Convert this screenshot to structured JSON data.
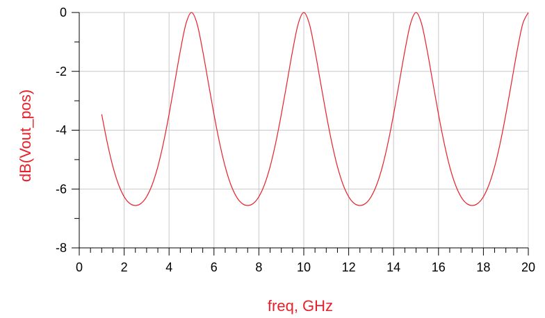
{
  "chart_data": {
    "type": "line",
    "xlabel": "freq, GHz",
    "ylabel": "dB(Vout_pos)",
    "xlim": [
      0,
      20
    ],
    "ylim": [
      -8,
      0
    ],
    "x_ticks": [
      0,
      2,
      4,
      6,
      8,
      10,
      12,
      14,
      16,
      18,
      20
    ],
    "y_ticks": [
      -8,
      -6,
      -4,
      -2,
      0
    ],
    "grid": true,
    "colors": {
      "series": "#e8202a",
      "ylabel": "#e8202a",
      "xlabel": "#e8202a",
      "grid": "#c8c8c8",
      "axis": "#000000"
    },
    "series": [
      {
        "x": [
          1.0,
          1.25,
          1.5,
          1.75,
          2.0,
          2.25,
          2.5,
          2.75,
          3.0,
          3.25,
          3.5,
          3.75,
          4.0,
          4.25,
          4.5,
          4.75,
          5.0,
          5.25,
          5.5,
          5.75,
          6.0,
          6.25,
          6.5,
          6.75,
          7.0,
          7.25,
          7.5,
          7.75,
          8.0,
          8.25,
          8.5,
          8.75,
          9.0,
          9.25,
          9.5,
          9.75,
          10.0,
          10.25,
          10.5,
          10.75,
          11.0,
          11.25,
          11.5,
          11.75,
          12.0,
          12.25,
          12.5,
          12.75,
          13.0,
          13.25,
          13.5,
          13.75,
          14.0,
          14.25,
          14.5,
          14.75,
          15.0,
          15.25,
          15.5,
          15.75,
          16.0,
          16.25,
          16.5,
          16.75,
          17.0,
          17.25,
          17.5,
          17.75,
          18.0,
          18.25,
          18.5,
          18.75,
          19.0,
          19.25,
          19.5,
          19.75,
          20.0
        ],
        "values": [
          -3.46,
          -4.43,
          -5.24,
          -5.85,
          -6.26,
          -6.49,
          -6.56,
          -6.49,
          -6.26,
          -5.85,
          -5.24,
          -4.43,
          -3.46,
          -2.39,
          -1.31,
          -0.39,
          0.0,
          -0.39,
          -1.31,
          -2.39,
          -3.46,
          -4.43,
          -5.24,
          -5.85,
          -6.26,
          -6.49,
          -6.56,
          -6.49,
          -6.26,
          -5.85,
          -5.24,
          -4.43,
          -3.46,
          -2.39,
          -1.31,
          -0.39,
          0.0,
          -0.39,
          -1.31,
          -2.39,
          -3.46,
          -4.43,
          -5.24,
          -5.85,
          -6.26,
          -6.49,
          -6.56,
          -6.49,
          -6.26,
          -5.85,
          -5.24,
          -4.43,
          -3.46,
          -2.39,
          -1.31,
          -0.39,
          0.0,
          -0.39,
          -1.31,
          -2.39,
          -3.46,
          -4.43,
          -5.24,
          -5.85,
          -6.26,
          -6.49,
          -6.56,
          -6.49,
          -6.26,
          -5.85,
          -5.24,
          -4.43,
          -3.46,
          -2.39,
          -1.31,
          -0.39,
          0.0
        ]
      }
    ]
  }
}
